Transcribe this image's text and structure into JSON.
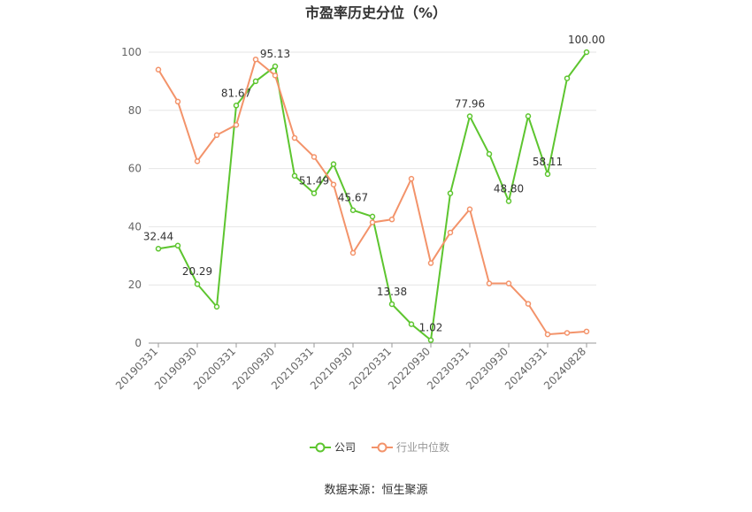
{
  "chart_data": {
    "type": "line",
    "title": "市盈率历史分位（%）",
    "categories": [
      "20190331",
      null,
      "20190930",
      null,
      "20200331",
      null,
      "20200930",
      null,
      "20210331",
      null,
      "20210930",
      null,
      "20220331",
      null,
      "20220930",
      null,
      "20230331",
      null,
      "20230930",
      null,
      "20240331",
      null,
      "20240828"
    ],
    "series": [
      {
        "name": "公司",
        "color": "#5dc52f",
        "values": [
          32.44,
          33.5,
          20.29,
          12.5,
          81.67,
          90,
          95.13,
          57.5,
          51.49,
          61.5,
          45.67,
          43.5,
          13.38,
          6.5,
          1.02,
          51.5,
          77.96,
          65,
          48.8,
          78,
          58.11,
          91,
          100.0
        ],
        "value_labels": [
          "32.44",
          null,
          "20.29",
          null,
          "81.67",
          null,
          "95.13",
          null,
          "51.49",
          null,
          "45.67",
          null,
          "13.38",
          null,
          "1.02",
          null,
          "77.96",
          null,
          "48.80",
          null,
          "58.11",
          null,
          "100.00"
        ]
      },
      {
        "name": "行业中位数",
        "color": "#f3936a",
        "values": [
          94,
          83,
          62.5,
          71.5,
          75,
          97.5,
          92,
          70.5,
          64,
          54.5,
          31,
          41.5,
          42.5,
          56.5,
          27.5,
          38,
          46,
          20.5,
          20.5,
          13.5,
          3,
          3.5,
          4
        ]
      }
    ],
    "ylim": [
      0,
      100
    ],
    "yticks": [
      0,
      20,
      40,
      60,
      80,
      100
    ],
    "grid": true,
    "source": "数据来源：恒生聚源"
  }
}
